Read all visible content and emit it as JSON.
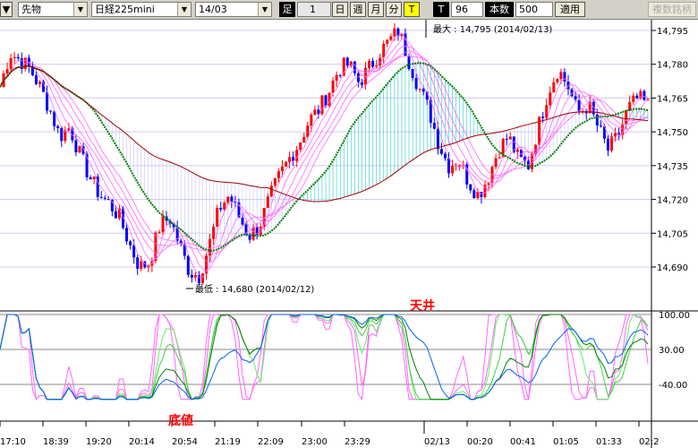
{
  "toolbar": {
    "type_select": "先物",
    "symbol_select": "日経225mini",
    "month_select": "14/03",
    "ashi_label": "足",
    "ashi_value": "1",
    "day_btn": "日",
    "week_btn": "週",
    "month_btn": "月",
    "minute_btn": "分",
    "tick_btn": "T",
    "t_label": "T",
    "t_value": "96",
    "count_label": "本数",
    "count_value": "500",
    "apply_btn": "適用",
    "multi_btn": "複数銘柄"
  },
  "colors": {
    "up": "#ff0000",
    "down": "#0000ff",
    "ma_short": "#ff66ff",
    "ma_mid": "#008000",
    "ma_long": "#a00000",
    "osc_blue": "#0060ff",
    "fill": "#00c0c0"
  },
  "chart_data": {
    "type": "candlestick",
    "price_ticks": [
      "14,795",
      "14,780",
      "14,765",
      "14,750",
      "14,735",
      "14,720",
      "14,705",
      "14,690"
    ],
    "price_tick_values": [
      14795,
      14780,
      14765,
      14750,
      14735,
      14720,
      14705,
      14690
    ],
    "osc_ticks": [
      "100.00",
      "30.00",
      "-40.00"
    ],
    "osc_tick_values": [
      100,
      30,
      -40
    ],
    "time_labels": [
      "17:10",
      "18:39",
      "19:20",
      "20:14",
      "20:54",
      "21:19",
      "22:09",
      "23:00",
      "23:29",
      "02/13",
      "00:20",
      "00:41",
      "01:05",
      "01:33",
      "02:2"
    ],
    "close_path": [
      14770,
      14785,
      14782,
      14778,
      14770,
      14760,
      14748,
      14752,
      14740,
      14730,
      14722,
      14718,
      14712,
      14700,
      14690,
      14692,
      14708,
      14712,
      14700,
      14688,
      14686,
      14700,
      14716,
      14722,
      14712,
      14704,
      14708,
      14720,
      14730,
      14738,
      14745,
      14755,
      14760,
      14768,
      14778,
      14780,
      14772,
      14778,
      14785,
      14790,
      14795,
      14782,
      14770,
      14760,
      14745,
      14735,
      14738,
      14728,
      14722,
      14730,
      14742,
      14748,
      14738,
      14735,
      14752,
      14768,
      14778,
      14770,
      14758,
      14762,
      14752,
      14742,
      14748,
      14760,
      14765,
      14762
    ],
    "annotations": {
      "high": "最大 : 14,795 (2014/02/13)",
      "low": "最低 : 14,680 (2014/02/12)",
      "top": "天井",
      "bottom": "底値"
    }
  }
}
